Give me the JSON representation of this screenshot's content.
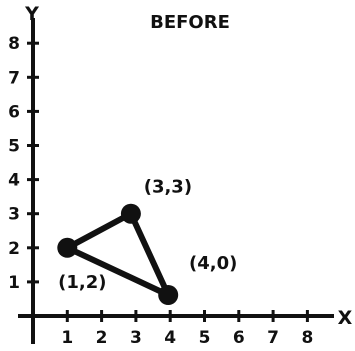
{
  "diagram": {
    "title": "BEFORE",
    "x_axis_label": "X",
    "y_axis_label": "Y",
    "x_ticks": [
      "1",
      "2",
      "3",
      "4",
      "5",
      "6",
      "7",
      "8"
    ],
    "y_ticks": [
      "1",
      "2",
      "3",
      "4",
      "5",
      "6",
      "7",
      "8"
    ],
    "x_range": [
      0,
      8
    ],
    "y_range": [
      0,
      8
    ],
    "colors": {
      "ink": "#111111",
      "background": "#ffffff"
    },
    "triangle": {
      "vertices": [
        {
          "label": "(1,2)",
          "x": 1,
          "y": 2
        },
        {
          "label": "(3,3)",
          "x": 3,
          "y": 3
        },
        {
          "label": "(4,0)",
          "x": 4,
          "y": 0
        }
      ]
    }
  }
}
